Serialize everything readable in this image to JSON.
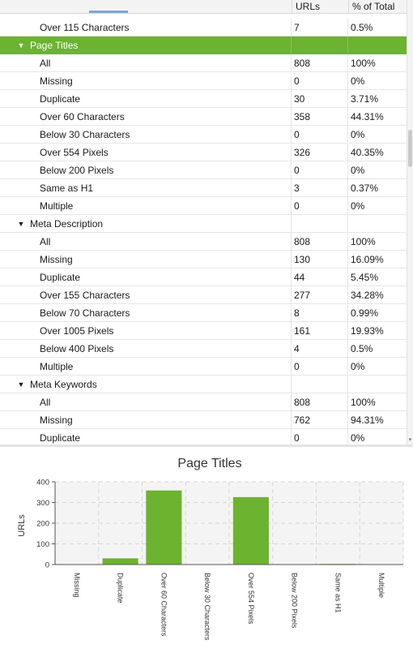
{
  "table": {
    "headers": {
      "urls": "URLs",
      "pct": "% of Total"
    },
    "rows": [
      {
        "kind": "child",
        "name": "Over 115 Characters",
        "urls": "7",
        "pct": "0.5%"
      },
      {
        "kind": "group",
        "name": "Page Titles",
        "urls": "",
        "pct": "",
        "selected": true
      },
      {
        "kind": "child",
        "name": "All",
        "urls": "808",
        "pct": "100%"
      },
      {
        "kind": "child",
        "name": "Missing",
        "urls": "0",
        "pct": "0%"
      },
      {
        "kind": "child",
        "name": "Duplicate",
        "urls": "30",
        "pct": "3.71%"
      },
      {
        "kind": "child",
        "name": "Over 60 Characters",
        "urls": "358",
        "pct": "44.31%"
      },
      {
        "kind": "child",
        "name": "Below 30 Characters",
        "urls": "0",
        "pct": "0%"
      },
      {
        "kind": "child",
        "name": "Over 554 Pixels",
        "urls": "326",
        "pct": "40.35%"
      },
      {
        "kind": "child",
        "name": "Below 200 Pixels",
        "urls": "0",
        "pct": "0%"
      },
      {
        "kind": "child",
        "name": "Same as H1",
        "urls": "3",
        "pct": "0.37%"
      },
      {
        "kind": "child",
        "name": "Multiple",
        "urls": "0",
        "pct": "0%"
      },
      {
        "kind": "group",
        "name": "Meta Description",
        "urls": "",
        "pct": ""
      },
      {
        "kind": "child",
        "name": "All",
        "urls": "808",
        "pct": "100%"
      },
      {
        "kind": "child",
        "name": "Missing",
        "urls": "130",
        "pct": "16.09%"
      },
      {
        "kind": "child",
        "name": "Duplicate",
        "urls": "44",
        "pct": "5.45%"
      },
      {
        "kind": "child",
        "name": "Over 155 Characters",
        "urls": "277",
        "pct": "34.28%"
      },
      {
        "kind": "child",
        "name": "Below 70 Characters",
        "urls": "8",
        "pct": "0.99%"
      },
      {
        "kind": "child",
        "name": "Over 1005 Pixels",
        "urls": "161",
        "pct": "19.93%"
      },
      {
        "kind": "child",
        "name": "Below 400 Pixels",
        "urls": "4",
        "pct": "0.5%"
      },
      {
        "kind": "child",
        "name": "Multiple",
        "urls": "0",
        "pct": "0%"
      },
      {
        "kind": "group",
        "name": "Meta Keywords",
        "urls": "",
        "pct": ""
      },
      {
        "kind": "child",
        "name": "All",
        "urls": "808",
        "pct": "100%"
      },
      {
        "kind": "child",
        "name": "Missing",
        "urls": "762",
        "pct": "94.31%"
      },
      {
        "kind": "child",
        "name": "Duplicate",
        "urls": "0",
        "pct": "0%"
      }
    ]
  },
  "icons": {
    "expanded": "▼",
    "scroll_down": "▾"
  },
  "colors": {
    "selection": "#6cb32f",
    "bar": "#6cb32f"
  },
  "chart_data": {
    "type": "bar",
    "title": "Page Titles",
    "ylabel": "URLs",
    "xlabel": "",
    "categories": [
      "Missing",
      "Duplicate",
      "Over 60 Characters",
      "Below 30 Characters",
      "Over 554 Pixels",
      "Below 200 Pixels",
      "Same as H1",
      "Multiple"
    ],
    "values": [
      0,
      30,
      358,
      0,
      326,
      0,
      3,
      0
    ],
    "ylim": [
      0,
      400
    ],
    "yticks": [
      0,
      100,
      200,
      300,
      400
    ],
    "grid": true,
    "legend": "none"
  }
}
